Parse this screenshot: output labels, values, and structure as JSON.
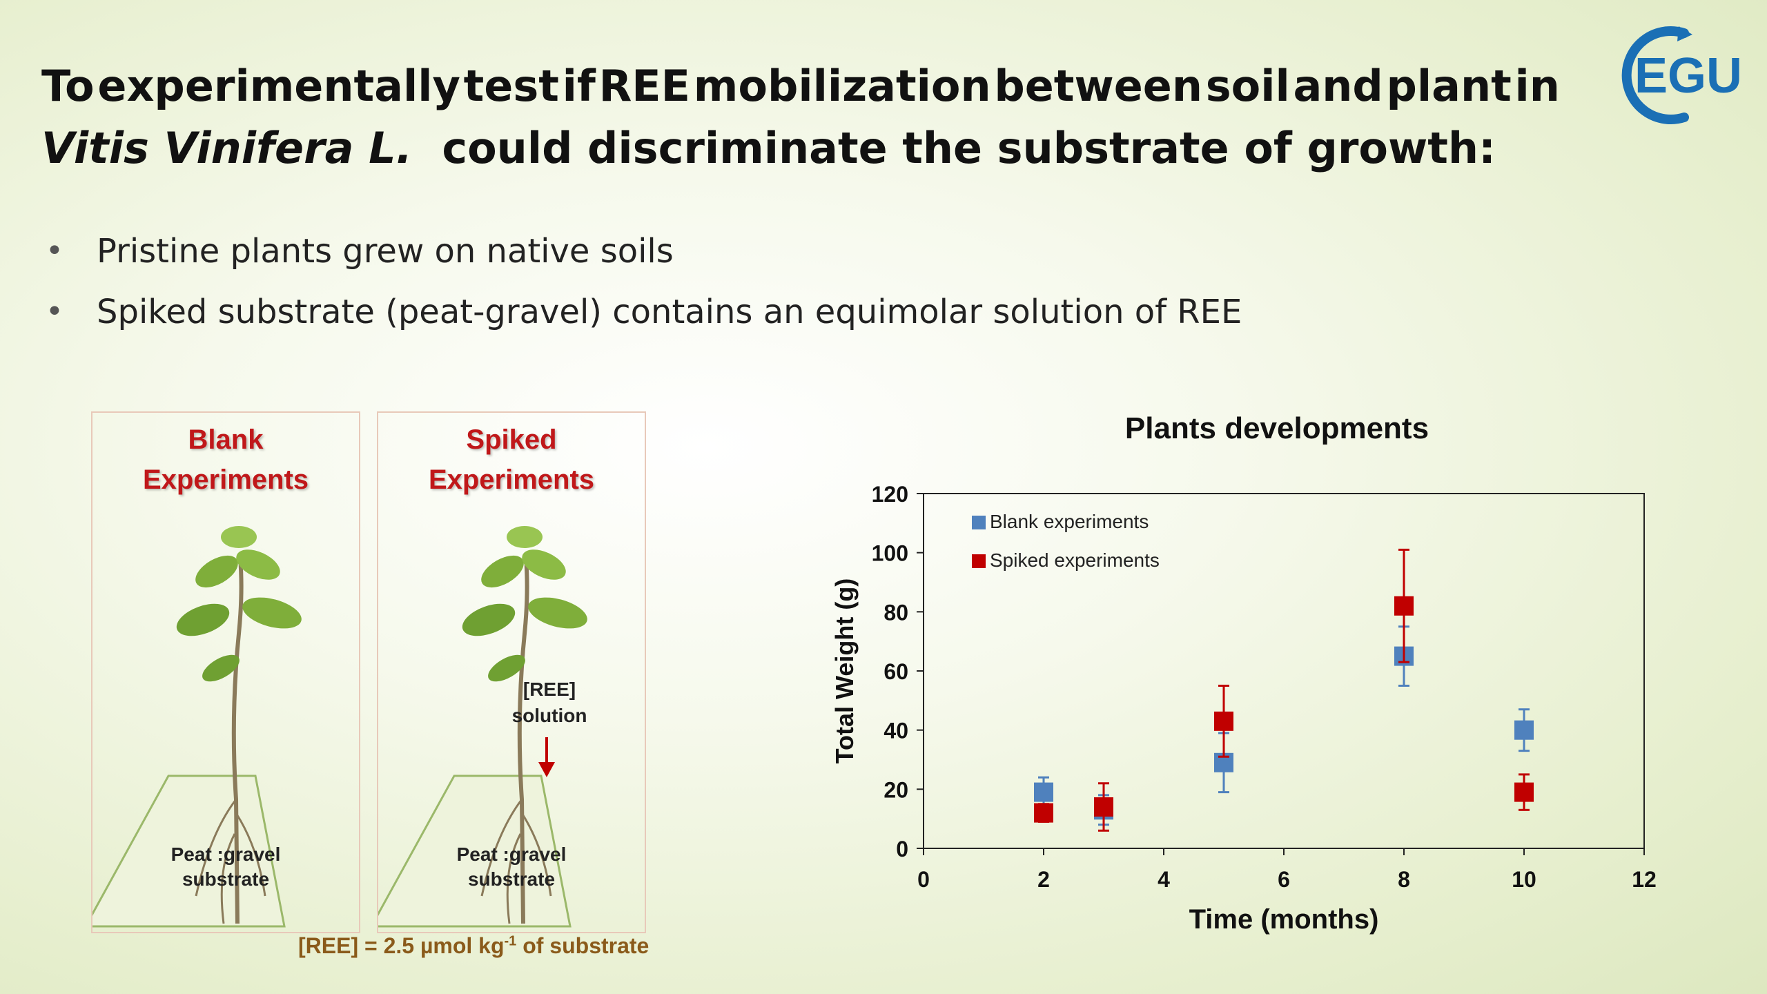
{
  "title": {
    "line1_words": [
      "To",
      "experimentally",
      "test",
      "if",
      "REE",
      "mobilization",
      "between",
      "soil",
      "and",
      "plant",
      "in"
    ],
    "species": "Vitis Vinifera L.",
    "line2_rest": "could discriminate the substrate of growth:"
  },
  "logo": {
    "text": "EGU",
    "color": "#1a6fb5"
  },
  "bullets": [
    "Pristine plants grew on native soils",
    "Spiked substrate (peat-gravel) contains an equimolar solution of REE"
  ],
  "panels": {
    "blank": {
      "title_l1": "Blank",
      "title_l2": "Experiments",
      "substrate_l1": "Peat :gravel",
      "substrate_l2": "substrate"
    },
    "spiked": {
      "title_l1": "Spiked",
      "title_l2": "Experiments",
      "ree_l1": "[REE]",
      "ree_l2": "solution",
      "substrate_l1": "Peat :gravel",
      "substrate_l2": "substrate"
    }
  },
  "footnote": {
    "prefix": "[REE] = 2.5 µmol kg",
    "sup": "-1",
    "suffix": " of substrate"
  },
  "colors": {
    "title_red": "#c0181a",
    "blank": "#4f81bd",
    "spiked": "#c00000"
  },
  "chart_data": {
    "type": "scatter",
    "title": "Plants developments",
    "xlabel": "Time (months)",
    "ylabel": "Total Weight (g)",
    "xlim": [
      0,
      12
    ],
    "ylim": [
      0,
      120
    ],
    "xticks": [
      0,
      2,
      4,
      6,
      8,
      10,
      12
    ],
    "yticks": [
      0,
      20,
      40,
      60,
      80,
      100,
      120
    ],
    "legend_position": "top-left",
    "grid": false,
    "series": [
      {
        "name": "Blank experiments",
        "color": "#4f81bd",
        "x": [
          2,
          3,
          5,
          8,
          10
        ],
        "y": [
          19,
          13,
          29,
          65,
          40
        ],
        "err": [
          5,
          5,
          10,
          10,
          7
        ]
      },
      {
        "name": "Spiked experiments",
        "color": "#c00000",
        "x": [
          2,
          3,
          5,
          8,
          10
        ],
        "y": [
          12,
          14,
          43,
          82,
          19
        ],
        "err": [
          3,
          8,
          12,
          19,
          6
        ]
      }
    ]
  }
}
